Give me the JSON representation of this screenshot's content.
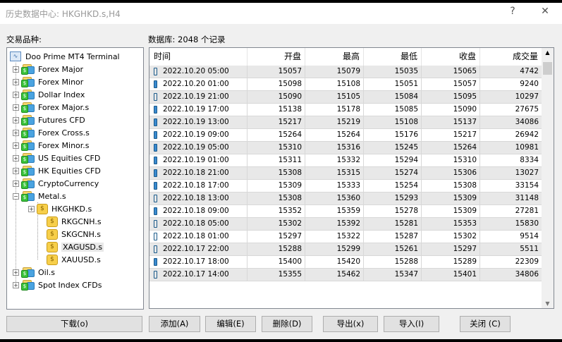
{
  "window": {
    "title": "历史数据中心: HKGHKD.s,H4",
    "help": "?",
    "close": "✕"
  },
  "symbols_label": "交易品种:",
  "db_label": "数据库: 2048 个记录",
  "tree": {
    "root": "Doo Prime MT4 Terminal",
    "groups": [
      "Forex Major",
      "Forex Minor",
      "Dollar Index",
      "Forex Major.s",
      "Futures CFD",
      "Forex Cross.s",
      "Forex Minor.s",
      "US Equities CFD",
      "HK Equities CFD",
      "CryptoCurrency",
      "Metal.s"
    ],
    "metal_children": [
      "HKGHKD.s",
      "RKGCNH.s",
      "SKGCNH.s",
      "XAGUSD.s",
      "XAUUSD.s"
    ],
    "selected": "XAGUSD.s",
    "after": [
      "Oil.s",
      "Spot Index CFDs"
    ]
  },
  "table": {
    "columns": [
      "时间",
      "开盘",
      "最高",
      "最低",
      "收盘",
      "成交量"
    ],
    "rows": [
      [
        "2022.10.20 05:00",
        "15057",
        "15079",
        "15035",
        "15065",
        "4742"
      ],
      [
        "2022.10.20 01:00",
        "15098",
        "15108",
        "15051",
        "15057",
        "9240"
      ],
      [
        "2022.10.19 21:00",
        "15090",
        "15105",
        "15084",
        "15095",
        "10297"
      ],
      [
        "2022.10.19 17:00",
        "15138",
        "15178",
        "15085",
        "15090",
        "27675"
      ],
      [
        "2022.10.19 13:00",
        "15217",
        "15219",
        "15108",
        "15137",
        "34086"
      ],
      [
        "2022.10.19 09:00",
        "15264",
        "15264",
        "15176",
        "15217",
        "26942"
      ],
      [
        "2022.10.19 05:00",
        "15310",
        "15316",
        "15245",
        "15264",
        "10981"
      ],
      [
        "2022.10.19 01:00",
        "15311",
        "15332",
        "15294",
        "15310",
        "8334"
      ],
      [
        "2022.10.18 21:00",
        "15308",
        "15315",
        "15274",
        "15306",
        "13027"
      ],
      [
        "2022.10.18 17:00",
        "15309",
        "15333",
        "15254",
        "15308",
        "33154"
      ],
      [
        "2022.10.18 13:00",
        "15308",
        "15360",
        "15293",
        "15309",
        "31148"
      ],
      [
        "2022.10.18 09:00",
        "15352",
        "15359",
        "15278",
        "15309",
        "27281"
      ],
      [
        "2022.10.18 05:00",
        "15302",
        "15392",
        "15281",
        "15353",
        "15830"
      ],
      [
        "2022.10.18 01:00",
        "15297",
        "15322",
        "15287",
        "15302",
        "9514"
      ],
      [
        "2022.10.17 22:00",
        "15288",
        "15299",
        "15261",
        "15297",
        "5511"
      ],
      [
        "2022.10.17 18:00",
        "15400",
        "15420",
        "15288",
        "15289",
        "22309"
      ],
      [
        "2022.10.17 14:00",
        "15355",
        "15462",
        "15347",
        "15401",
        "34806"
      ]
    ]
  },
  "buttons": {
    "download": "下载(o)",
    "add": "添加(A)",
    "edit": "编辑(E)",
    "delete": "删除(D)",
    "export": "导出(x)",
    "import": "导入(I)",
    "close": "关闭 (C)"
  }
}
